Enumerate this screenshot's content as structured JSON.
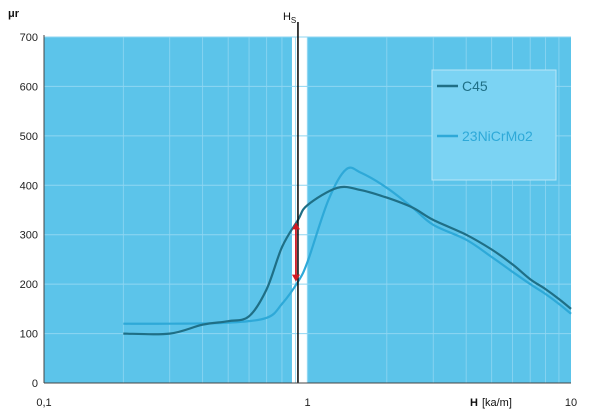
{
  "chart_data": {
    "type": "line",
    "title": "",
    "ylabel": "μr",
    "xlabel_bold": "H",
    "xlabel_unit": "[ka/m]",
    "x_scale": "log",
    "xlim": [
      0.1,
      10
    ],
    "ylim": [
      0,
      700
    ],
    "x_tick_labels": [
      "0,1",
      "1",
      "10"
    ],
    "y_ticks": [
      0,
      100,
      200,
      300,
      400,
      500,
      600,
      700
    ],
    "grid": "on",
    "legend": "right",
    "marker": {
      "label_main": "H",
      "label_sub": "S",
      "x": 0.92
    },
    "arrow": {
      "x": 0.92,
      "from": 325,
      "to": 205,
      "color": "#d01822"
    },
    "colors": {
      "plot_background": "#5cc4ea",
      "legend_background": "#7bd3f3",
      "grid": "#8fd6f2",
      "band": "#ffffff"
    },
    "series": [
      {
        "name": "C45",
        "color": "#1f6f86",
        "points": [
          [
            0.2,
            100
          ],
          [
            0.3,
            100
          ],
          [
            0.4,
            118
          ],
          [
            0.5,
            125
          ],
          [
            0.6,
            135
          ],
          [
            0.7,
            190
          ],
          [
            0.8,
            275
          ],
          [
            0.92,
            330
          ],
          [
            1.0,
            360
          ],
          [
            1.3,
            395
          ],
          [
            1.6,
            390
          ],
          [
            2.0,
            375
          ],
          [
            2.5,
            355
          ],
          [
            3.0,
            330
          ],
          [
            4.0,
            300
          ],
          [
            5.0,
            270
          ],
          [
            6.0,
            240
          ],
          [
            7.0,
            210
          ],
          [
            8.0,
            190
          ],
          [
            9.0,
            170
          ],
          [
            10.0,
            150
          ]
        ]
      },
      {
        "name": "23NiCrMo2",
        "color": "#2ea9d8",
        "points": [
          [
            0.2,
            120
          ],
          [
            0.3,
            120
          ],
          [
            0.5,
            122
          ],
          [
            0.7,
            132
          ],
          [
            0.8,
            160
          ],
          [
            0.92,
            205
          ],
          [
            1.0,
            245
          ],
          [
            1.2,
            370
          ],
          [
            1.4,
            432
          ],
          [
            1.6,
            425
          ],
          [
            2.0,
            395
          ],
          [
            2.5,
            355
          ],
          [
            3.0,
            320
          ],
          [
            4.0,
            290
          ],
          [
            5.0,
            255
          ],
          [
            6.0,
            225
          ],
          [
            7.0,
            200
          ],
          [
            8.0,
            180
          ],
          [
            9.0,
            160
          ],
          [
            10.0,
            140
          ]
        ]
      }
    ]
  }
}
